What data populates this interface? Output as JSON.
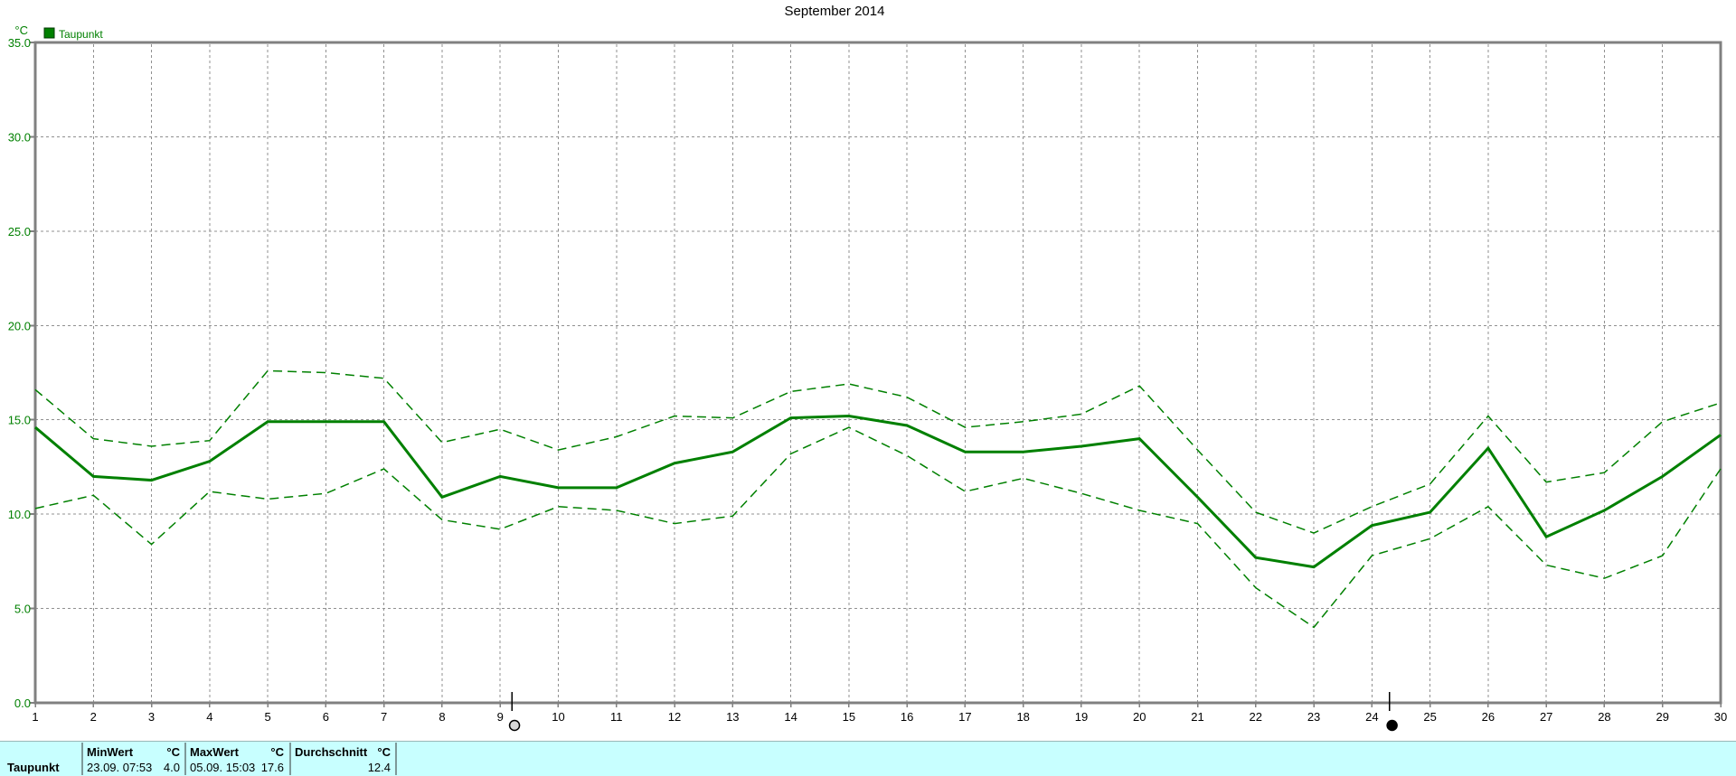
{
  "title": "September 2014",
  "chart_data": {
    "type": "line",
    "title": "September 2014",
    "unit_label": "°C",
    "line_color": "#008000",
    "grid": true,
    "legend_position": "top-left",
    "legend": [
      {
        "label": "Taupunkt",
        "color": "#008000"
      }
    ],
    "xlabel": "",
    "ylabel": "°C",
    "ylim": [
      0,
      35
    ],
    "y_ticks": [
      35,
      30,
      25,
      20,
      15,
      10,
      5,
      0
    ],
    "y_tick_labels": [
      "35.0",
      "30.0",
      "25.0",
      "20.0",
      "15.0",
      "10.0",
      "5.0",
      "0.0"
    ],
    "x_tick_labels": [
      "1",
      "2",
      "3",
      "4",
      "5",
      "6",
      "7",
      "8",
      "9",
      "10",
      "11",
      "12",
      "13",
      "14",
      "15",
      "16",
      "17",
      "18",
      "19",
      "20",
      "21",
      "22",
      "23",
      "24",
      "25",
      "26",
      "27",
      "28",
      "29",
      "30"
    ],
    "series": [
      {
        "id": "taupunkt-upper-dashed",
        "style": "dashed",
        "values": [
          16.6,
          14.0,
          13.6,
          13.9,
          17.6,
          17.5,
          17.2,
          13.8,
          14.5,
          13.4,
          14.1,
          15.2,
          15.1,
          16.5,
          16.9,
          16.2,
          14.6,
          14.9,
          15.3,
          16.8,
          13.4,
          10.1,
          9.0,
          10.4,
          11.6,
          15.2,
          11.7,
          12.2,
          14.9,
          15.9
        ]
      },
      {
        "id": "taupunkt-lower-dashed",
        "style": "dashed",
        "values": [
          10.3,
          11.0,
          8.4,
          11.2,
          10.8,
          11.1,
          12.4,
          9.7,
          9.2,
          10.4,
          10.2,
          9.5,
          9.9,
          13.2,
          14.6,
          13.1,
          11.2,
          11.9,
          11.1,
          10.2,
          9.5,
          6.1,
          4.0,
          7.8,
          8.7,
          10.4,
          7.3,
          6.6,
          7.8,
          12.4
        ]
      },
      {
        "id": "taupunkt-solid",
        "style": "solid",
        "values": [
          14.6,
          12.0,
          11.8,
          12.8,
          14.9,
          14.9,
          14.9,
          10.9,
          12.0,
          11.4,
          11.4,
          12.7,
          13.3,
          15.1,
          15.2,
          14.7,
          13.3,
          13.3,
          13.6,
          14.0,
          10.9,
          7.7,
          7.2,
          9.4,
          10.1,
          13.5,
          8.8,
          10.2,
          12.0,
          14.2
        ]
      }
    ],
    "markers": [
      {
        "day": 9.2,
        "symbol": "full-moon-icon"
      },
      {
        "day": 24.3,
        "symbol": "new-moon-icon"
      }
    ]
  },
  "status_bar": {
    "row_label": "Taupunkt",
    "min": {
      "header": "MinWert",
      "unit": "°C",
      "datetime": "23.09.  07:53",
      "value": "4.0"
    },
    "max": {
      "header": "MaxWert",
      "unit": "°C",
      "datetime": "05.09.  15:03",
      "value": "17.6"
    },
    "avg": {
      "header": "Durchschnitt",
      "unit": "°C",
      "value": "12.4"
    }
  }
}
